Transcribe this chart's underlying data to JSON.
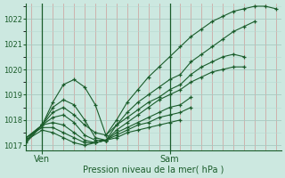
{
  "xlabel": "Pression niveau de la mer( hPa )",
  "bg_color": "#cce8e0",
  "grid_color_major": "#a8c8c0",
  "grid_color_minor": "#b8d8d0",
  "line_color": "#1a5c2a",
  "ylim": [
    1016.8,
    1022.6
  ],
  "yticks": [
    1017,
    1018,
    1019,
    1020,
    1021,
    1022
  ],
  "xlim": [
    0,
    48
  ],
  "ven_line_x": 3,
  "sam_line_x": 27,
  "red_vlines_x": [
    1,
    5,
    7,
    9,
    11,
    13,
    15,
    17,
    19,
    21,
    23,
    25,
    29,
    31,
    33,
    35,
    37,
    39,
    41,
    43,
    45,
    47
  ],
  "series": [
    {
      "x": [
        0,
        3,
        5,
        7,
        9,
        11,
        13,
        15,
        17,
        19,
        21,
        23,
        25,
        27,
        29,
        31,
        33,
        35,
        37,
        39,
        41,
        43,
        45,
        47
      ],
      "y": [
        1017.1,
        1017.8,
        1018.7,
        1019.4,
        1019.6,
        1019.3,
        1018.6,
        1017.4,
        1018.0,
        1018.7,
        1019.2,
        1019.7,
        1020.1,
        1020.5,
        1020.9,
        1021.3,
        1021.6,
        1021.9,
        1022.1,
        1022.3,
        1022.4,
        1022.5,
        1022.5,
        1022.4
      ]
    },
    {
      "x": [
        0,
        3,
        5,
        7,
        9,
        11,
        13,
        15,
        17,
        19,
        21,
        23,
        25,
        27,
        29,
        31,
        33,
        35,
        37,
        39,
        41,
        43
      ],
      "y": [
        1017.2,
        1017.8,
        1018.5,
        1018.8,
        1018.6,
        1018.0,
        1017.3,
        1017.2,
        1017.8,
        1018.3,
        1018.7,
        1019.0,
        1019.3,
        1019.6,
        1019.8,
        1020.3,
        1020.6,
        1020.9,
        1021.2,
        1021.5,
        1021.7,
        1021.9
      ]
    },
    {
      "x": [
        0,
        3,
        5,
        7,
        9,
        11,
        13,
        15,
        17,
        19,
        21,
        23,
        25,
        27,
        29,
        31,
        33,
        35,
        37,
        39,
        41
      ],
      "y": [
        1017.2,
        1017.8,
        1018.3,
        1018.5,
        1018.2,
        1017.8,
        1017.5,
        1017.4,
        1017.8,
        1018.1,
        1018.4,
        1018.7,
        1018.9,
        1019.2,
        1019.4,
        1019.8,
        1020.1,
        1020.3,
        1020.5,
        1020.6,
        1020.5
      ]
    },
    {
      "x": [
        0,
        3,
        5,
        7,
        9,
        11,
        13,
        15,
        17,
        19,
        21,
        23,
        25,
        27,
        29,
        31,
        33,
        35,
        37,
        39,
        41
      ],
      "y": [
        1017.3,
        1017.8,
        1018.1,
        1018.2,
        1017.9,
        1017.4,
        1017.2,
        1017.2,
        1017.6,
        1017.9,
        1018.2,
        1018.5,
        1018.8,
        1019.0,
        1019.2,
        1019.5,
        1019.7,
        1019.9,
        1020.0,
        1020.1,
        1020.1
      ]
    },
    {
      "x": [
        0,
        3,
        5,
        7,
        9,
        11,
        13,
        15,
        17,
        19,
        21,
        23,
        25,
        27,
        29,
        31
      ],
      "y": [
        1017.3,
        1017.8,
        1017.9,
        1017.8,
        1017.5,
        1017.2,
        1017.1,
        1017.2,
        1017.5,
        1017.7,
        1017.9,
        1018.1,
        1018.3,
        1018.5,
        1018.6,
        1018.9
      ]
    },
    {
      "x": [
        0,
        3,
        5,
        7,
        9,
        11,
        13,
        15,
        17,
        19,
        21,
        23,
        25,
        27,
        29,
        31
      ],
      "y": [
        1017.3,
        1017.7,
        1017.7,
        1017.5,
        1017.3,
        1017.1,
        1017.1,
        1017.2,
        1017.4,
        1017.6,
        1017.8,
        1017.9,
        1018.1,
        1018.2,
        1018.3,
        1018.5
      ]
    },
    {
      "x": [
        0,
        3,
        5,
        7,
        9,
        11,
        13,
        15,
        17,
        19,
        21,
        23,
        25,
        27,
        29
      ],
      "y": [
        1017.2,
        1017.6,
        1017.5,
        1017.3,
        1017.1,
        1017.0,
        1017.1,
        1017.2,
        1017.3,
        1017.5,
        1017.6,
        1017.7,
        1017.8,
        1017.9,
        1018.0
      ]
    }
  ]
}
